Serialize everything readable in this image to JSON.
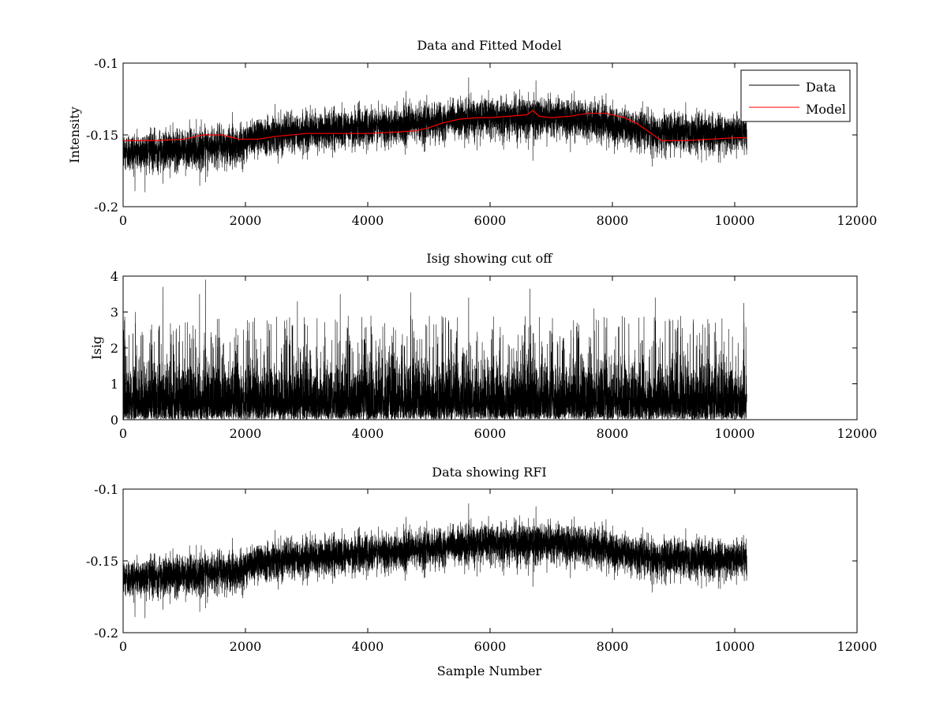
{
  "figure": {
    "background": "#ffffff"
  },
  "chart_data": [
    {
      "type": "line",
      "title": "Data and Fitted Model",
      "xlabel": "",
      "ylabel": "Intensity",
      "xlim": [
        0,
        12000
      ],
      "ylim": [
        -0.2,
        -0.1
      ],
      "x_ticks": [
        0,
        2000,
        4000,
        6000,
        8000,
        10000,
        12000
      ],
      "x_tick_labels": [
        "0",
        "2000",
        "4000",
        "6000",
        "8000",
        "10000",
        "12000"
      ],
      "y_ticks": [
        -0.2,
        -0.15,
        -0.1
      ],
      "y_tick_labels": [
        "-0.2",
        "-0.15",
        "-0.1"
      ],
      "grid": false,
      "legend": {
        "position": "top-right",
        "entries": [
          "Data",
          "Model"
        ]
      },
      "series": [
        {
          "name": "Data",
          "color": "#000000",
          "rendering": "dense noisy trace, about 10200 samples",
          "x_range": [
            0,
            10200
          ],
          "baseline_x": [
            0,
            1000,
            1900,
            2200,
            3000,
            3800,
            4600,
            5200,
            5600,
            6000,
            6400,
            6800,
            7200,
            7600,
            8000,
            8400,
            8800,
            9400,
            10200
          ],
          "baseline_y": [
            -0.162,
            -0.16,
            -0.157,
            -0.15,
            -0.148,
            -0.145,
            -0.143,
            -0.141,
            -0.139,
            -0.138,
            -0.138,
            -0.137,
            -0.138,
            -0.14,
            -0.143,
            -0.146,
            -0.148,
            -0.149,
            -0.148
          ],
          "noise_sd": 0.0065,
          "spikes": [
            {
              "x": 5650,
              "y": -0.11
            },
            {
              "x": 6750,
              "y": -0.112
            },
            {
              "x": 6700,
              "y": -0.168
            },
            {
              "x": 650,
              "y": -0.184
            },
            {
              "x": 1350,
              "y": -0.183
            },
            {
              "x": 8650,
              "y": -0.172
            }
          ]
        },
        {
          "name": "Model",
          "color": "#ff0000",
          "x": [
            0,
            500,
            1000,
            1300,
            1600,
            1900,
            2200,
            2500,
            3000,
            3500,
            4000,
            4500,
            4800,
            5000,
            5200,
            5500,
            5800,
            6000,
            6300,
            6600,
            6700,
            6800,
            7000,
            7300,
            7600,
            7900,
            8200,
            8400,
            8600,
            8800,
            9200,
            9600,
            10000,
            10200
          ],
          "y": [
            -0.154,
            -0.154,
            -0.153,
            -0.15,
            -0.15,
            -0.153,
            -0.153,
            -0.151,
            -0.149,
            -0.149,
            -0.149,
            -0.148,
            -0.147,
            -0.145,
            -0.142,
            -0.139,
            -0.138,
            -0.138,
            -0.137,
            -0.136,
            -0.133,
            -0.137,
            -0.138,
            -0.137,
            -0.135,
            -0.135,
            -0.138,
            -0.142,
            -0.148,
            -0.154,
            -0.154,
            -0.153,
            -0.152,
            -0.152
          ]
        }
      ]
    },
    {
      "type": "line",
      "title": "Isig showing cut off",
      "xlabel": "",
      "ylabel": "Isig",
      "xlim": [
        0,
        12000
      ],
      "ylim": [
        0,
        4
      ],
      "x_ticks": [
        0,
        2000,
        4000,
        6000,
        8000,
        10000,
        12000
      ],
      "x_tick_labels": [
        "0",
        "2000",
        "4000",
        "6000",
        "8000",
        "10000",
        "12000"
      ],
      "y_ticks": [
        0,
        1,
        2,
        3,
        4
      ],
      "y_tick_labels": [
        "0",
        "1",
        "2",
        "3",
        "4"
      ],
      "grid": false,
      "series": [
        {
          "color": "#000000",
          "rendering": "dense noisy trace of nonnegative values, about 10200 samples",
          "x_range": [
            0,
            10200
          ],
          "typical_range": [
            0,
            2
          ],
          "peaks": [
            {
              "x": 1350,
              "y": 3.9
            },
            {
              "x": 650,
              "y": 3.7
            },
            {
              "x": 6650,
              "y": 3.65
            },
            {
              "x": 4700,
              "y": 3.55
            },
            {
              "x": 1250,
              "y": 3.5
            },
            {
              "x": 3550,
              "y": 3.5
            },
            {
              "x": 5650,
              "y": 3.4
            },
            {
              "x": 8700,
              "y": 3.4
            },
            {
              "x": 10150,
              "y": 3.25
            },
            {
              "x": 2850,
              "y": 3.3
            },
            {
              "x": 7700,
              "y": 3.1
            },
            {
              "x": 200,
              "y": 3.0
            }
          ]
        }
      ]
    },
    {
      "type": "line",
      "title": "Data showing RFI",
      "xlabel": "Sample Number",
      "ylabel": "",
      "xlim": [
        0,
        12000
      ],
      "ylim": [
        -0.2,
        -0.1
      ],
      "x_ticks": [
        0,
        2000,
        4000,
        6000,
        8000,
        10000,
        12000
      ],
      "x_tick_labels": [
        "0",
        "2000",
        "4000",
        "6000",
        "8000",
        "10000",
        "12000"
      ],
      "y_ticks": [
        -0.2,
        -0.15,
        -0.1
      ],
      "y_tick_labels": [
        "-0.2",
        "-0.15",
        "-0.1"
      ],
      "grid": false,
      "series": [
        {
          "color": "#000000",
          "rendering": "dense noisy trace, same data as top panel",
          "x_range": [
            0,
            10200
          ],
          "baseline_x": [
            0,
            1000,
            1900,
            2200,
            3000,
            3800,
            4600,
            5200,
            5600,
            6000,
            6400,
            6800,
            7200,
            7600,
            8000,
            8400,
            8800,
            9400,
            10200
          ],
          "baseline_y": [
            -0.162,
            -0.16,
            -0.157,
            -0.15,
            -0.148,
            -0.145,
            -0.143,
            -0.141,
            -0.139,
            -0.138,
            -0.138,
            -0.137,
            -0.138,
            -0.14,
            -0.143,
            -0.146,
            -0.148,
            -0.149,
            -0.148
          ],
          "noise_sd": 0.0065,
          "spikes": [
            {
              "x": 5650,
              "y": -0.11
            },
            {
              "x": 6750,
              "y": -0.112
            },
            {
              "x": 6700,
              "y": -0.168
            },
            {
              "x": 650,
              "y": -0.184
            },
            {
              "x": 1350,
              "y": -0.183
            },
            {
              "x": 8650,
              "y": -0.172
            }
          ]
        }
      ]
    }
  ]
}
